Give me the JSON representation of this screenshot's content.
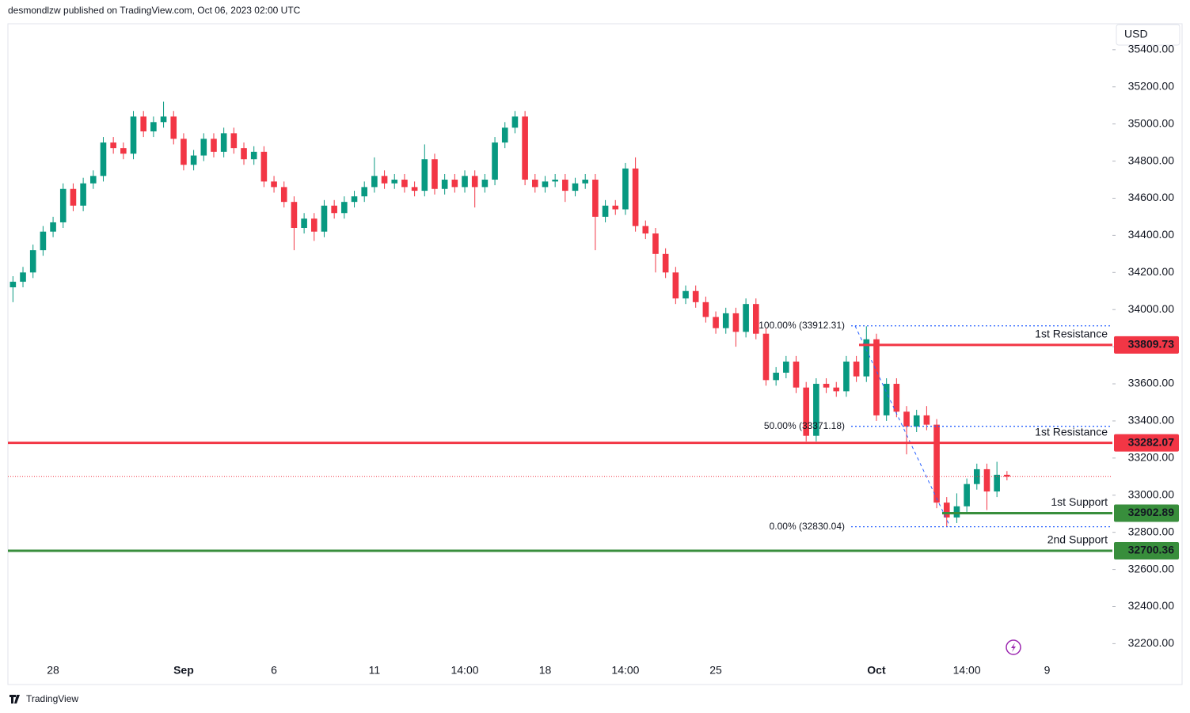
{
  "header": "desmondlzw published on TradingView.com, Oct 06, 2023 02:00 UTC",
  "currency": "USD",
  "footer": "TradingView",
  "chart_data": {
    "type": "candlestick",
    "up_color": "#089981",
    "down_color": "#f23645",
    "categories": [
      null,
      null,
      null,
      null,
      "28",
      null,
      null,
      null,
      null,
      null,
      null,
      null,
      null,
      null,
      null,
      null,
      null,
      "Sep",
      null,
      null,
      null,
      null,
      null,
      null,
      null,
      null,
      "6",
      null,
      null,
      null,
      null,
      null,
      null,
      null,
      null,
      null,
      "11",
      null,
      null,
      null,
      null,
      null,
      null,
      null,
      null,
      "14:00",
      null,
      null,
      null,
      null,
      null,
      null,
      null,
      "18",
      null,
      null,
      null,
      null,
      null,
      null,
      null,
      "14:00",
      null,
      null,
      null,
      null,
      null,
      null,
      null,
      null,
      "25",
      null,
      null,
      null,
      null,
      null,
      null,
      null,
      null,
      null,
      null,
      null,
      null,
      null,
      null,
      null,
      "Oct",
      null,
      null,
      null,
      null,
      null,
      null,
      null,
      null,
      "14:00",
      null,
      null,
      null,
      null,
      null,
      null,
      null,
      "9",
      null,
      null,
      null,
      null,
      null,
      null
    ],
    "open": [
      34120,
      34150,
      34200,
      34320,
      34420,
      34470,
      34650,
      34560,
      34680,
      34720,
      34900,
      34870,
      34840,
      35040,
      34960,
      35010,
      35040,
      34920,
      34780,
      34830,
      34920,
      34850,
      34950,
      34870,
      34810,
      34850,
      34690,
      34660,
      34580,
      34440,
      34490,
      34420,
      34560,
      34520,
      34580,
      34610,
      34660,
      34720,
      34680,
      34700,
      34660,
      34640,
      34810,
      34650,
      34700,
      34660,
      34720,
      34660,
      34700,
      34900,
      34980,
      35040,
      34700,
      34660,
      34690,
      34700,
      34640,
      34680,
      34700,
      34500,
      34560,
      34540,
      34760,
      34450,
      34410,
      34300,
      34200,
      34060,
      34100,
      34040,
      33960,
      33900,
      33980,
      33880,
      34030,
      33870,
      33620,
      33660,
      33720,
      33580,
      33320,
      33600,
      33580,
      33560,
      33720,
      33640,
      33840,
      33430,
      33600,
      33450,
      33370,
      33430,
      33380,
      32960,
      32880,
      32940,
      33060,
      33140,
      33020,
      33110,
      null,
      null,
      null,
      null,
      null,
      null,
      null,
      null,
      null,
      null
    ],
    "high": [
      34180,
      34230,
      34350,
      34450,
      34500,
      34680,
      34680,
      34710,
      34750,
      34930,
      34930,
      34900,
      35070,
      35070,
      35040,
      35120,
      35070,
      34950,
      34860,
      34950,
      34950,
      34980,
      34980,
      34900,
      34880,
      34880,
      34720,
      34690,
      34610,
      34520,
      34520,
      34590,
      34590,
      34610,
      34640,
      34690,
      34820,
      34750,
      34730,
      34730,
      34690,
      34890,
      34840,
      34730,
      34730,
      34750,
      34750,
      34730,
      34930,
      35010,
      35070,
      35070,
      34730,
      34720,
      34730,
      34730,
      34710,
      34730,
      34730,
      34590,
      34590,
      34790,
      34820,
      34480,
      34440,
      34330,
      34230,
      34130,
      34130,
      34070,
      33990,
      34010,
      34010,
      34060,
      34060,
      33900,
      33690,
      33750,
      33750,
      33610,
      33630,
      33630,
      33610,
      33750,
      33750,
      33910,
      33870,
      33630,
      33630,
      33480,
      33460,
      33480,
      33410,
      32990,
      33010,
      33090,
      33170,
      33170,
      33180,
      33130,
      null,
      null,
      null,
      null,
      null,
      null,
      null,
      null,
      null,
      null
    ],
    "low": [
      34040,
      34120,
      34170,
      34290,
      34390,
      34440,
      34530,
      34530,
      34650,
      34690,
      34840,
      34810,
      34810,
      34930,
      34930,
      34980,
      34890,
      34750,
      34750,
      34800,
      34820,
      34820,
      34840,
      34780,
      34780,
      34660,
      34630,
      34550,
      34320,
      34410,
      34370,
      34390,
      34490,
      34490,
      34550,
      34580,
      34630,
      34650,
      34650,
      34630,
      34610,
      34610,
      34620,
      34620,
      34630,
      34630,
      34550,
      34630,
      34670,
      34870,
      34950,
      34670,
      34630,
      34630,
      34660,
      34580,
      34610,
      34650,
      34320,
      34470,
      34510,
      34510,
      34420,
      34380,
      34200,
      34170,
      34030,
      34030,
      34010,
      33930,
      33870,
      33870,
      33800,
      33850,
      33840,
      33590,
      33590,
      33630,
      33550,
      33290,
      33290,
      33550,
      33530,
      33530,
      33610,
      33610,
      33400,
      33400,
      33420,
      33220,
      33340,
      33350,
      32930,
      32830,
      32850,
      32910,
      33030,
      32920,
      32990,
      33080,
      null,
      null,
      null,
      null,
      null,
      null,
      null,
      null,
      null,
      null
    ],
    "close": [
      34150,
      34200,
      34320,
      34420,
      34470,
      34650,
      34560,
      34680,
      34720,
      34900,
      34870,
      34840,
      35040,
      34960,
      35010,
      35040,
      34920,
      34780,
      34830,
      34920,
      34850,
      34950,
      34870,
      34810,
      34850,
      34690,
      34660,
      34580,
      34440,
      34490,
      34420,
      34560,
      34520,
      34580,
      34610,
      34660,
      34720,
      34680,
      34700,
      34660,
      34640,
      34810,
      34650,
      34700,
      34660,
      34720,
      34660,
      34700,
      34900,
      34980,
      35040,
      34700,
      34660,
      34690,
      34700,
      34640,
      34680,
      34700,
      34500,
      34560,
      34540,
      34760,
      34450,
      34410,
      34300,
      34200,
      34060,
      34100,
      34040,
      33960,
      33900,
      33980,
      33880,
      34030,
      33870,
      33620,
      33660,
      33720,
      33580,
      33320,
      33600,
      33580,
      33560,
      33720,
      33640,
      33840,
      33430,
      33600,
      33450,
      33370,
      33430,
      33380,
      32960,
      32880,
      32940,
      33060,
      33140,
      33020,
      33110,
      33100,
      null,
      null,
      null,
      null,
      null,
      null,
      null,
      null,
      null,
      null
    ],
    "ylim": [
      31980,
      35540
    ],
    "yticks": [
      {
        "value": 32200,
        "label": "32200.00"
      },
      {
        "value": 32400,
        "label": "32400.00"
      },
      {
        "value": 32600,
        "label": "32600.00"
      },
      {
        "value": 32800,
        "label": "32800.00"
      },
      {
        "value": 33000,
        "label": "33000.00"
      },
      {
        "value": 33200,
        "label": "33200.00"
      },
      {
        "value": 33400,
        "label": "33400.00"
      },
      {
        "value": 33600,
        "label": "33600.00"
      },
      {
        "value": 33800,
        "label": "33800.00"
      },
      {
        "value": 34000,
        "label": "34000.00"
      },
      {
        "value": 34200,
        "label": "34200.00"
      },
      {
        "value": 34400,
        "label": "34400.00"
      },
      {
        "value": 34600,
        "label": "34600.00"
      },
      {
        "value": 34800,
        "label": "34800.00"
      },
      {
        "value": 35000,
        "label": "35000.00"
      },
      {
        "value": 35200,
        "label": "35200.00"
      },
      {
        "value": 35400,
        "label": "35400.00"
      }
    ],
    "levels": [
      {
        "label": "1st Resistance",
        "value": 33809.73,
        "color": "#f23645"
      },
      {
        "label": "1st Resistance",
        "value": 33282.07,
        "color": "#f23645"
      },
      {
        "label": "1st Support",
        "value": 32902.89,
        "color": "#388e3c"
      },
      {
        "label": "2nd Support",
        "value": 32700.36,
        "color": "#388e3c"
      }
    ],
    "fib": [
      {
        "label": "100.00% (33912.31)",
        "value": 33912.31
      },
      {
        "label": "50.00% (33371.18)",
        "value": 33371.18
      },
      {
        "label": "0.00% (32830.04)",
        "value": 32830.04
      }
    ]
  }
}
